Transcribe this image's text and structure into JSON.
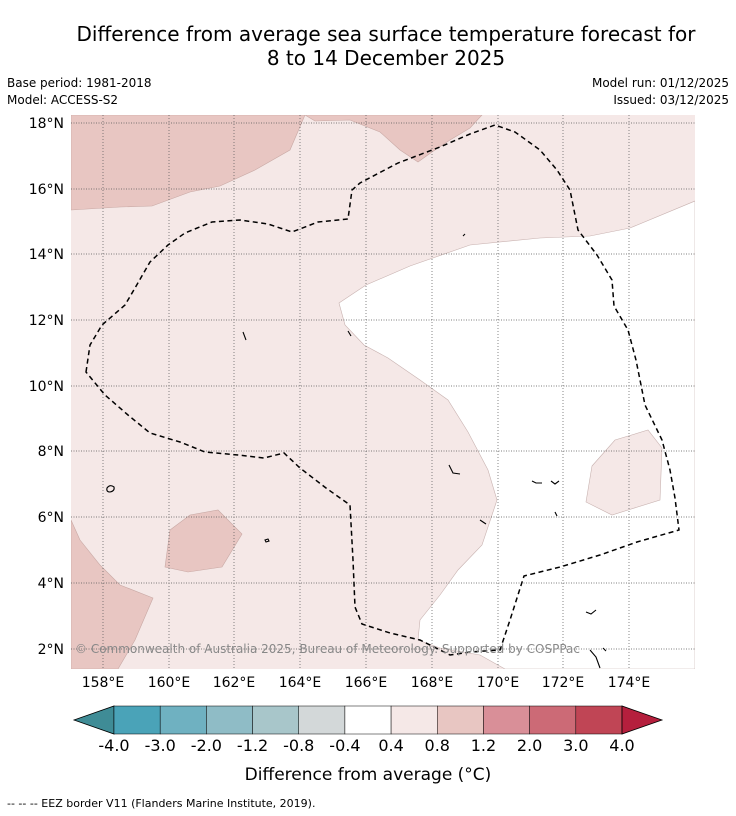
{
  "title_line1": "Difference from average sea surface temperature forecast for",
  "title_line2": "8 to 14 December 2025",
  "meta_left": {
    "base_period": "Base period: 1981-2018",
    "model": "Model: ACCESS-S2"
  },
  "meta_right": {
    "model_run": "Model run: 01/12/2025",
    "issued": "Issued: 03/12/2025"
  },
  "lat_labels": [
    "18°N",
    "16°N",
    "14°N",
    "12°N",
    "10°N",
    "8°N",
    "6°N",
    "4°N",
    "2°N"
  ],
  "lon_labels": [
    "158°E",
    "160°E",
    "162°E",
    "164°E",
    "166°E",
    "168°E",
    "170°E",
    "172°E",
    "174°E"
  ],
  "copyright": "© Commonwealth of Australia 2025, Bureau of Meteorology. Supported by COSPPac",
  "colorbar": {
    "labels": [
      "-4.0",
      "-3.0",
      "-2.0",
      "-1.2",
      "-0.8",
      "-0.4",
      "0.4",
      "0.8",
      "1.2",
      "2.0",
      "3.0",
      "4.0"
    ],
    "colors": [
      "#4aa3b8",
      "#6fb1c1",
      "#8fbcc6",
      "#a8c6ca",
      "#d3d8d9",
      "#ffffff",
      "#f5e8e7",
      "#e8c6c2",
      "#d98f98",
      "#cc6a76",
      "#c04555"
    ],
    "low_arrow_color": "#3f8c96",
    "high_arrow_color": "#b51f3d",
    "title": "Difference from average (°C)"
  },
  "footer": "--  --  -- EEZ border V11 (Flanders Marine Institute, 2019).",
  "map_colors": {
    "light_pink": "#f5e8e7",
    "medium_pink": "#e8c6c2",
    "white": "#ffffff"
  }
}
